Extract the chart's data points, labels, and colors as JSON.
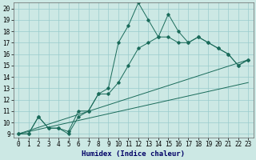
{
  "xlabel": "Humidex (Indice chaleur)",
  "bg_color": "#cce8e4",
  "grid_color": "#99cccc",
  "line_color": "#1a6b5a",
  "xlim_min": -0.5,
  "xlim_max": 23.5,
  "ylim_min": 8.7,
  "ylim_max": 20.5,
  "yticks": [
    9,
    10,
    11,
    12,
    13,
    14,
    15,
    16,
    17,
    18,
    19,
    20
  ],
  "xticks": [
    0,
    1,
    2,
    3,
    4,
    5,
    6,
    7,
    8,
    9,
    10,
    11,
    12,
    13,
    14,
    15,
    16,
    17,
    18,
    19,
    20,
    21,
    22,
    23
  ],
  "line1_x": [
    0,
    1,
    2,
    3,
    4,
    5,
    6,
    7,
    8,
    9,
    10,
    11,
    12,
    13,
    14,
    15,
    16,
    17,
    18,
    19,
    20,
    21,
    22,
    23
  ],
  "line1_y": [
    9.0,
    9.0,
    10.5,
    9.5,
    9.5,
    9.2,
    11.0,
    11.0,
    12.5,
    13.0,
    17.0,
    18.5,
    20.5,
    19.0,
    17.5,
    19.5,
    18.0,
    17.0,
    17.5,
    17.0,
    16.5,
    16.0,
    15.0,
    15.5
  ],
  "line2_x": [
    0,
    1,
    2,
    3,
    4,
    5,
    6,
    7,
    8,
    9,
    10,
    11,
    12,
    13,
    14,
    15,
    16,
    17,
    18,
    19,
    20,
    21,
    22,
    23
  ],
  "line2_y": [
    9.0,
    9.0,
    10.5,
    9.5,
    9.5,
    9.0,
    10.5,
    11.0,
    12.5,
    12.5,
    13.5,
    15.0,
    16.5,
    17.0,
    17.5,
    17.5,
    17.0,
    17.0,
    17.5,
    17.0,
    16.5,
    16.0,
    15.0,
    15.5
  ],
  "line3_x": [
    0,
    23
  ],
  "line3_y": [
    9.0,
    15.5
  ],
  "line4_x": [
    0,
    23
  ],
  "line4_y": [
    9.0,
    13.5
  ],
  "tick_fontsize": 5.5,
  "xlabel_fontsize": 6.5
}
